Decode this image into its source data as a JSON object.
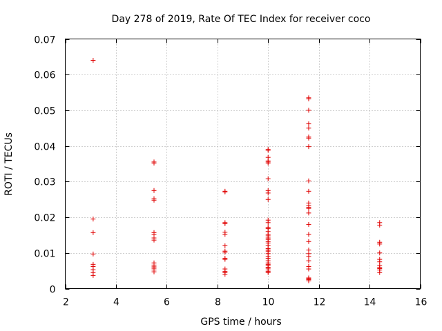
{
  "chart_data": {
    "type": "scatter",
    "title": "Day 278 of 2019, Rate Of TEC Index for receiver coco",
    "xlabel": "GPS time / hours",
    "ylabel": "ROTI / TECUs",
    "xlim": [
      2,
      16
    ],
    "ylim": [
      0,
      0.07
    ],
    "xticks": [
      2,
      4,
      6,
      8,
      10,
      12,
      14,
      16
    ],
    "yticks": [
      0,
      0.01,
      0.02,
      0.03,
      0.04,
      0.05,
      0.06,
      0.07
    ],
    "xtick_labels": [
      "2",
      "4",
      "6",
      "8",
      "10",
      "12",
      "14",
      "16"
    ],
    "ytick_labels": [
      "0",
      "0.01",
      "0.02",
      "0.03",
      "0.04",
      "0.05",
      "0.06",
      "0.07"
    ],
    "grid": true,
    "marker": "+",
    "color": "#e00000",
    "series": [
      {
        "name": "ROTI",
        "points": [
          [
            3.1,
            0.064
          ],
          [
            3.1,
            0.0195
          ],
          [
            3.1,
            0.0157
          ],
          [
            3.1,
            0.0097
          ],
          [
            3.1,
            0.0068
          ],
          [
            3.1,
            0.0062
          ],
          [
            3.1,
            0.0053
          ],
          [
            3.1,
            0.0045
          ],
          [
            3.1,
            0.0037
          ],
          [
            5.5,
            0.0355
          ],
          [
            5.5,
            0.0352
          ],
          [
            5.5,
            0.0275
          ],
          [
            5.5,
            0.0252
          ],
          [
            5.5,
            0.0248
          ],
          [
            5.5,
            0.0157
          ],
          [
            5.5,
            0.0152
          ],
          [
            5.5,
            0.0142
          ],
          [
            5.5,
            0.0136
          ],
          [
            5.5,
            0.0072
          ],
          [
            5.5,
            0.0066
          ],
          [
            5.5,
            0.0061
          ],
          [
            5.5,
            0.0057
          ],
          [
            5.5,
            0.0052
          ],
          [
            5.5,
            0.0047
          ],
          [
            8.3,
            0.0273
          ],
          [
            8.3,
            0.0271
          ],
          [
            8.3,
            0.0185
          ],
          [
            8.3,
            0.0182
          ],
          [
            8.3,
            0.0158
          ],
          [
            8.3,
            0.0152
          ],
          [
            8.3,
            0.012
          ],
          [
            8.3,
            0.0105
          ],
          [
            8.3,
            0.0102
          ],
          [
            8.3,
            0.0085
          ],
          [
            8.3,
            0.0082
          ],
          [
            8.3,
            0.0055
          ],
          [
            8.3,
            0.0048
          ],
          [
            8.3,
            0.0045
          ],
          [
            8.3,
            0.004
          ],
          [
            10.0,
            0.039
          ],
          [
            10.0,
            0.0388
          ],
          [
            10.0,
            0.0368
          ],
          [
            10.0,
            0.0358
          ],
          [
            10.0,
            0.0355
          ],
          [
            10.0,
            0.0352
          ],
          [
            10.0,
            0.0308
          ],
          [
            10.0,
            0.0275
          ],
          [
            10.0,
            0.0268
          ],
          [
            10.0,
            0.025
          ],
          [
            10.0,
            0.0192
          ],
          [
            10.0,
            0.0185
          ],
          [
            10.0,
            0.0172
          ],
          [
            10.0,
            0.0168
          ],
          [
            10.0,
            0.016
          ],
          [
            10.0,
            0.0152
          ],
          [
            10.0,
            0.0148
          ],
          [
            10.0,
            0.0142
          ],
          [
            10.0,
            0.0138
          ],
          [
            10.0,
            0.0132
          ],
          [
            10.0,
            0.0128
          ],
          [
            10.0,
            0.012
          ],
          [
            10.0,
            0.0112
          ],
          [
            10.0,
            0.0108
          ],
          [
            10.0,
            0.0105
          ],
          [
            10.0,
            0.0098
          ],
          [
            10.0,
            0.009
          ],
          [
            10.0,
            0.0085
          ],
          [
            10.0,
            0.0078
          ],
          [
            10.0,
            0.0072
          ],
          [
            10.0,
            0.0068
          ],
          [
            10.0,
            0.0065
          ],
          [
            10.0,
            0.006
          ],
          [
            10.0,
            0.0057
          ],
          [
            10.0,
            0.0052
          ],
          [
            10.0,
            0.0048
          ],
          [
            10.0,
            0.0045
          ],
          [
            11.6,
            0.0535
          ],
          [
            11.6,
            0.0532
          ],
          [
            11.6,
            0.05
          ],
          [
            11.6,
            0.0462
          ],
          [
            11.6,
            0.045
          ],
          [
            11.6,
            0.0425
          ],
          [
            11.6,
            0.0422
          ],
          [
            11.6,
            0.0398
          ],
          [
            11.6,
            0.0302
          ],
          [
            11.6,
            0.0273
          ],
          [
            11.6,
            0.024
          ],
          [
            11.6,
            0.0232
          ],
          [
            11.6,
            0.0228
          ],
          [
            11.6,
            0.0225
          ],
          [
            11.6,
            0.0212
          ],
          [
            11.6,
            0.018
          ],
          [
            11.6,
            0.0152
          ],
          [
            11.6,
            0.0132
          ],
          [
            11.6,
            0.0108
          ],
          [
            11.6,
            0.0098
          ],
          [
            11.6,
            0.009
          ],
          [
            11.6,
            0.0078
          ],
          [
            11.6,
            0.0062
          ],
          [
            11.6,
            0.0055
          ],
          [
            11.6,
            0.003
          ],
          [
            11.6,
            0.0028
          ],
          [
            11.6,
            0.0025
          ],
          [
            11.6,
            0.0022
          ],
          [
            14.4,
            0.0185
          ],
          [
            14.4,
            0.0178
          ],
          [
            14.4,
            0.013
          ],
          [
            14.4,
            0.0125
          ],
          [
            14.4,
            0.01
          ],
          [
            14.4,
            0.0082
          ],
          [
            14.4,
            0.0075
          ],
          [
            14.4,
            0.0065
          ],
          [
            14.4,
            0.006
          ],
          [
            14.4,
            0.0056
          ],
          [
            14.4,
            0.0052
          ],
          [
            14.4,
            0.0045
          ]
        ]
      }
    ]
  }
}
